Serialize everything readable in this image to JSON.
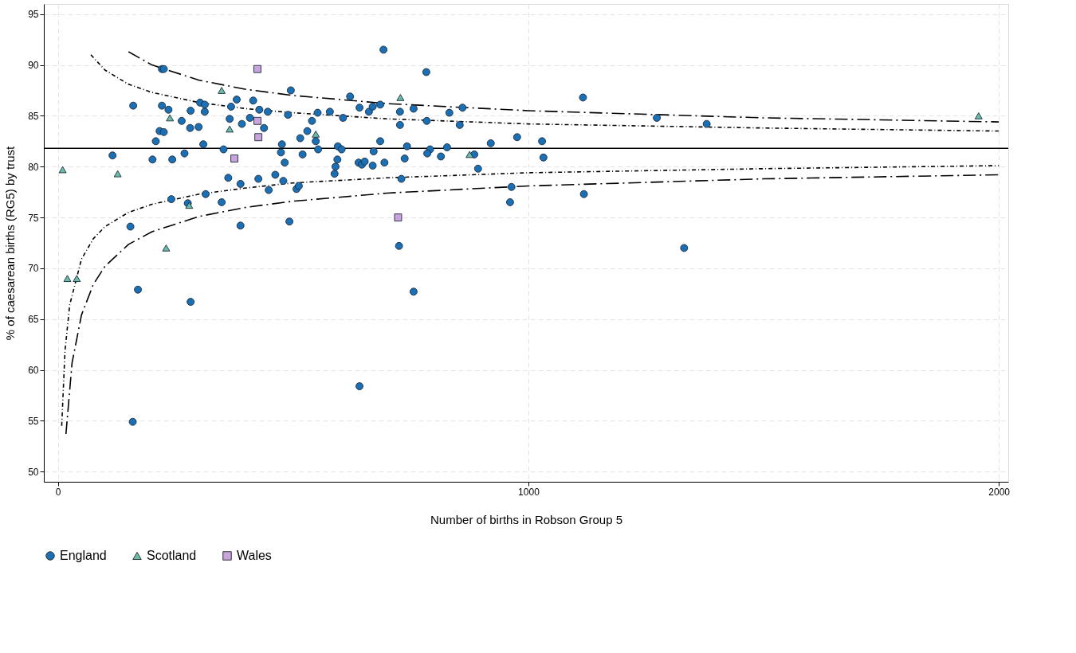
{
  "chart_data": {
    "type": "scatter",
    "xlabel": "Number of births in Robson Group 5",
    "ylabel": "% of caesarean births (RG5) by trust",
    "xlim": [
      -30,
      2020
    ],
    "ylim": [
      49,
      96
    ],
    "xticks": [
      0,
      1000,
      2000
    ],
    "yticks": [
      50,
      55,
      60,
      65,
      70,
      75,
      80,
      85,
      90,
      95
    ],
    "grid": true,
    "legend": "bottom",
    "ref_lines": [
      {
        "axis": "y",
        "value": 81.8,
        "color": "#000000",
        "line_style": "solid"
      }
    ],
    "series": [
      {
        "name": "England",
        "marker": "circle",
        "color": "#1a6fb5",
        "x": [
          116,
          160,
          221,
          225,
          201,
          243,
          269,
          309,
          352,
          208,
          216,
          225,
          221,
          235,
          263,
          282,
          281,
          299,
          302,
          312,
          312,
          380,
          368,
          365,
          391,
          241,
          314,
          348,
          362,
          388,
          154,
          388,
          170,
          282,
          276,
          692,
          783,
          495,
          621,
          415,
          428,
          446,
          489,
          552,
          578,
          641,
          661,
          669,
          685,
          727,
          756,
          784,
          408,
          438,
          540,
          606,
          727,
          515,
          530,
          548,
          685,
          476,
          474,
          553,
          595,
          603,
          671,
          742,
          791,
          785,
          520,
          482,
          594,
          590,
          588,
          639,
          646,
          652,
          669,
          694,
          737,
          730,
          426,
          462,
          479,
          448,
          507,
          512,
          492,
          725,
          756,
          832,
          860,
          854,
          976,
          920,
          1029,
          827,
          814,
          885,
          1032,
          893,
          964,
          961,
          1118,
          1116,
          1273,
          1379,
          1331,
          641,
          159
        ],
        "values": [
          81.1,
          86.0,
          89.6,
          89.6,
          80.7,
          80.7,
          81.3,
          82.2,
          81.7,
          82.5,
          83.5,
          83.4,
          86.0,
          85.6,
          84.5,
          85.5,
          83.8,
          83.9,
          86.3,
          86.1,
          85.4,
          86.6,
          85.9,
          84.7,
          84.2,
          76.8,
          77.3,
          76.5,
          78.9,
          78.3,
          74.1,
          74.2,
          67.9,
          66.7,
          76.4,
          91.5,
          89.3,
          87.5,
          86.9,
          86.5,
          85.6,
          85.4,
          85.1,
          85.3,
          85.4,
          85.8,
          85.4,
          85.9,
          86.1,
          85.4,
          85.7,
          84.5,
          84.8,
          83.8,
          84.5,
          84.8,
          84.1,
          82.8,
          83.5,
          82.5,
          82.5,
          82.2,
          81.4,
          81.7,
          82.0,
          81.7,
          81.5,
          82.0,
          81.7,
          81.3,
          81.2,
          80.4,
          80.7,
          80.0,
          79.3,
          80.4,
          80.2,
          80.5,
          80.1,
          80.4,
          80.8,
          78.8,
          78.8,
          79.2,
          78.6,
          77.7,
          77.8,
          78.1,
          74.6,
          72.2,
          67.7,
          85.3,
          85.8,
          84.1,
          82.9,
          82.3,
          82.5,
          81.9,
          81.0,
          81.2,
          80.9,
          79.8,
          78.0,
          76.5,
          77.3,
          86.8,
          84.8,
          84.2,
          72.0,
          58.4,
          54.9
        ]
      },
      {
        "name": "Scotland",
        "marker": "triangle",
        "color": "#6cbcaa",
        "x": [
          348,
          238,
          365,
          10,
          127,
          279,
          230,
          20,
          40,
          548,
          728,
          875,
          1957
        ],
        "values": [
          87.5,
          84.8,
          83.7,
          79.7,
          79.3,
          76.2,
          72.0,
          69.0,
          69.0,
          83.2,
          86.8,
          81.2,
          85.0
        ]
      },
      {
        "name": "Wales",
        "marker": "square",
        "color": "#c9a3dc",
        "x": [
          424,
          424,
          426,
          375,
          723
        ],
        "values": [
          89.6,
          84.5,
          82.9,
          80.8,
          75.0
        ]
      },
      {
        "type": "line",
        "line_style": "dashed",
        "color": "#000000",
        "x": [
          150,
          200,
          300,
          400,
          500,
          700,
          1000,
          1500,
          2000
        ],
        "values": [
          91.3,
          90.0,
          88.5,
          87.6,
          87.0,
          86.2,
          85.5,
          84.8,
          84.4
        ]
      },
      {
        "type": "line",
        "line_style": "dotted",
        "color": "#000000",
        "x": [
          70,
          100,
          150,
          200,
          300,
          400,
          500,
          700,
          1000,
          1500,
          2000
        ],
        "values": [
          91.0,
          89.5,
          88.1,
          87.3,
          86.3,
          85.7,
          85.3,
          84.7,
          84.2,
          83.8,
          83.5
        ]
      },
      {
        "type": "line",
        "line_style": "dotted",
        "color": "#000000",
        "x": [
          8,
          15,
          25,
          50,
          75,
          100,
          150,
          200,
          300,
          400,
          500,
          700,
          1000,
          1500,
          2000
        ],
        "values": [
          54.5,
          61.9,
          66.4,
          70.9,
          72.9,
          74.1,
          75.5,
          76.3,
          77.3,
          77.9,
          78.4,
          78.9,
          79.4,
          79.8,
          80.1
        ]
      },
      {
        "type": "line",
        "line_style": "dashed",
        "color": "#000000",
        "x": [
          17,
          30,
          50,
          75,
          100,
          150,
          200,
          300,
          400,
          500,
          700,
          1000,
          1500,
          2000
        ],
        "values": [
          53.7,
          60.7,
          65.4,
          68.4,
          70.2,
          72.35,
          73.6,
          75.1,
          76.0,
          76.6,
          77.4,
          78.1,
          78.8,
          79.2
        ]
      }
    ]
  }
}
